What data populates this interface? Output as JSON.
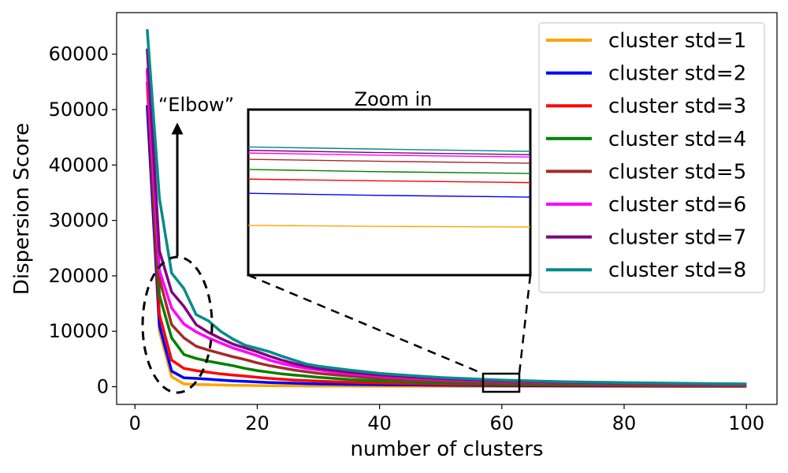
{
  "chart_data": {
    "type": "line",
    "xlabel": "number of clusters",
    "ylabel": "Dispersion Score",
    "xlim": [
      -3,
      105
    ],
    "ylim": [
      -3200,
      67500
    ],
    "xticks": [
      0,
      20,
      40,
      60,
      80,
      100
    ],
    "yticks": [
      0,
      10000,
      20000,
      30000,
      40000,
      50000,
      60000
    ],
    "grid": false,
    "legend_position": "top-right",
    "x": [
      2,
      4,
      6,
      8,
      10,
      12,
      14,
      16,
      18,
      20,
      22,
      24,
      26,
      28,
      30,
      35,
      40,
      45,
      50,
      60,
      70,
      80,
      90,
      100
    ],
    "series": [
      {
        "name": "cluster std=1",
        "color": "#ffa500",
        "values": [
          50500,
          10000,
          1800,
          500,
          400,
          350,
          300,
          260,
          230,
          200,
          180,
          160,
          140,
          130,
          120,
          100,
          90,
          80,
          70,
          60,
          55,
          50,
          45,
          40
        ]
      },
      {
        "name": "cluster std=2",
        "color": "#0000ff",
        "values": [
          50800,
          11000,
          2800,
          1600,
          1500,
          1350,
          1200,
          1050,
          950,
          850,
          750,
          700,
          620,
          560,
          500,
          420,
          360,
          310,
          270,
          200,
          160,
          140,
          120,
          100
        ]
      },
      {
        "name": "cluster std=3",
        "color": "#ff0000",
        "values": [
          55000,
          13000,
          4800,
          3300,
          2900,
          2600,
          2300,
          2100,
          1900,
          1700,
          1500,
          1350,
          1200,
          1100,
          1000,
          800,
          650,
          550,
          450,
          350,
          280,
          230,
          190,
          160
        ]
      },
      {
        "name": "cluster std=4",
        "color": "#008000",
        "values": [
          57000,
          16500,
          8800,
          5800,
          5100,
          4600,
          4200,
          3800,
          3300,
          2900,
          2600,
          2300,
          2100,
          1900,
          1700,
          1300,
          1050,
          850,
          700,
          500,
          400,
          330,
          280,
          240
        ]
      },
      {
        "name": "cluster std=5",
        "color": "#a52a2a",
        "values": [
          57000,
          19500,
          11200,
          8800,
          7300,
          6600,
          6000,
          5400,
          4900,
          4300,
          3800,
          3400,
          3000,
          2700,
          2400,
          1900,
          1500,
          1200,
          1000,
          750,
          580,
          470,
          390,
          320
        ]
      },
      {
        "name": "cluster std=6",
        "color": "#ff00ff",
        "values": [
          57500,
          21000,
          14200,
          11300,
          9900,
          8800,
          7900,
          7000,
          6300,
          5600,
          4800,
          4200,
          3700,
          3300,
          3000,
          2300,
          1900,
          1550,
          1300,
          950,
          750,
          600,
          500,
          420
        ]
      },
      {
        "name": "cluster std=7",
        "color": "#800080",
        "values": [
          61000,
          24500,
          17100,
          14500,
          11200,
          9800,
          8700,
          7700,
          7000,
          6300,
          5500,
          4800,
          4200,
          3700,
          3300,
          2600,
          2100,
          1750,
          1450,
          1050,
          800,
          650,
          540,
          450
        ]
      },
      {
        "name": "cluster std=8",
        "color": "#008b8b",
        "values": [
          64500,
          34000,
          20500,
          17700,
          13000,
          11900,
          10000,
          8600,
          7500,
          6900,
          6300,
          5500,
          4800,
          4100,
          3700,
          3000,
          2400,
          2000,
          1650,
          1200,
          900,
          720,
          600,
          500
        ]
      }
    ],
    "annotations": {
      "elbow_label": "“Elbow”",
      "zoom_label": "Zoom in",
      "zoom_region": {
        "x": [
          57.5,
          63.2
        ],
        "y": [
          -1100,
          2400
        ]
      }
    }
  }
}
